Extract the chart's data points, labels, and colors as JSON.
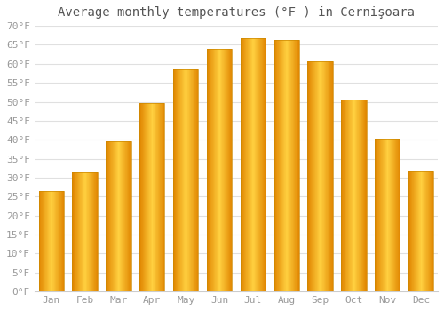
{
  "title": "Average monthly temperatures (°F ) in Cernişoara",
  "months": [
    "Jan",
    "Feb",
    "Mar",
    "Apr",
    "May",
    "Jun",
    "Jul",
    "Aug",
    "Sep",
    "Oct",
    "Nov",
    "Dec"
  ],
  "values": [
    26.6,
    31.3,
    39.7,
    49.6,
    58.5,
    64.0,
    66.7,
    66.2,
    60.6,
    50.5,
    40.3,
    31.6
  ],
  "bar_color_light": "#FFD055",
  "bar_color_mid": "#FFA500",
  "bar_color_dark": "#E08000",
  "bar_edge_color": "#CC8800",
  "ylim": [
    0,
    70
  ],
  "ytick_step": 5,
  "background_color": "#ffffff",
  "grid_color": "#e0e0e0",
  "title_fontsize": 10,
  "tick_fontsize": 8,
  "tick_color": "#999999",
  "figsize": [
    5.0,
    3.5
  ],
  "dpi": 100
}
